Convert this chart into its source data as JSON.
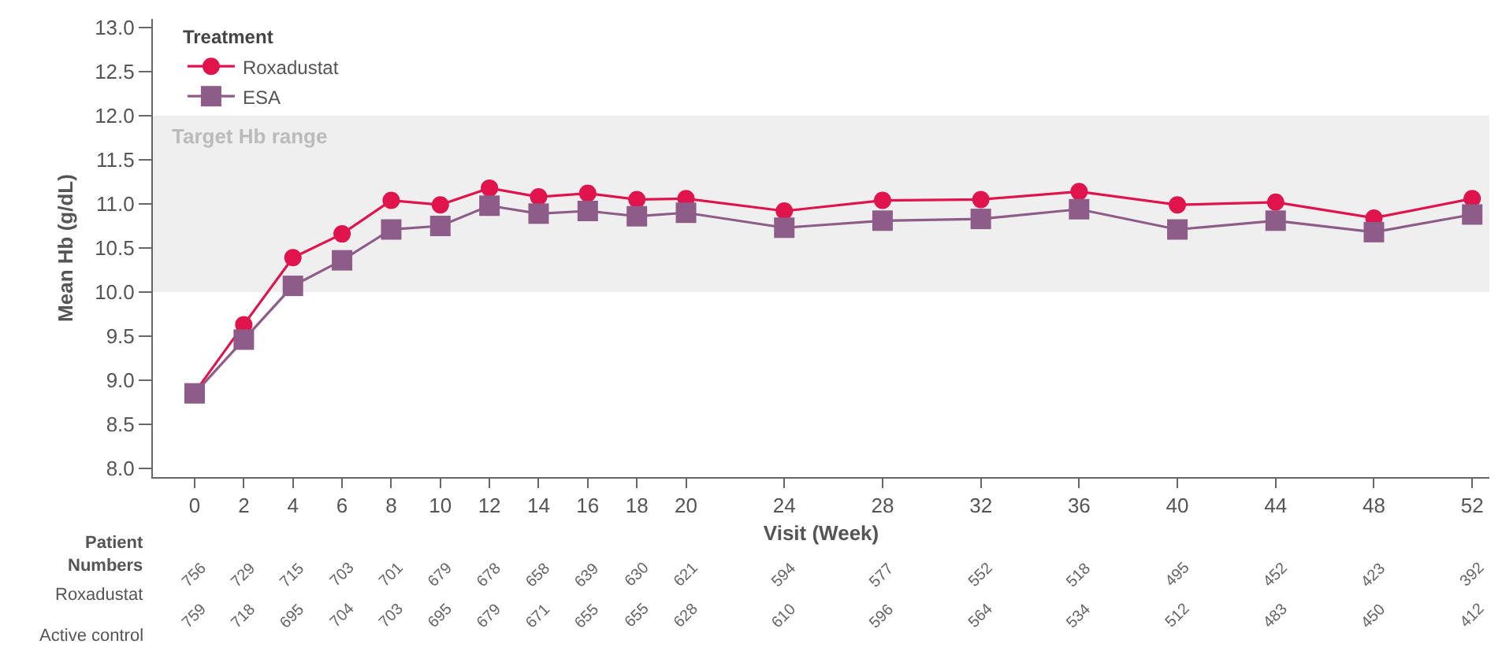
{
  "chart_data": {
    "type": "line",
    "x": [
      0,
      2,
      4,
      6,
      8,
      10,
      12,
      14,
      16,
      18,
      20,
      24,
      28,
      32,
      36,
      40,
      44,
      48,
      52
    ],
    "series": [
      {
        "name": "Roxadustat",
        "color": "#e0144c",
        "marker": "circle",
        "values": [
          8.86,
          9.63,
          10.39,
          10.66,
          11.04,
          10.99,
          11.18,
          11.08,
          11.12,
          11.05,
          11.06,
          10.92,
          11.04,
          11.05,
          11.14,
          10.99,
          11.02,
          10.84,
          11.06
        ]
      },
      {
        "name": "ESA",
        "color": "#8e5c88",
        "marker": "square",
        "values": [
          8.85,
          9.46,
          10.07,
          10.36,
          10.71,
          10.75,
          10.98,
          10.89,
          10.92,
          10.86,
          10.9,
          10.73,
          10.81,
          10.83,
          10.94,
          10.71,
          10.81,
          10.68,
          10.88
        ]
      }
    ],
    "xlabel": "Visit (Week)",
    "ylabel": "Mean Hb (g/dL)",
    "legend_title": "Treatment",
    "legend": "top left",
    "grid": false,
    "xlim": [
      -1.7,
      52.7
    ],
    "xticks": [
      0,
      2,
      4,
      6,
      8,
      10,
      12,
      14,
      16,
      18,
      20,
      24,
      28,
      32,
      36,
      40,
      44,
      48,
      52
    ],
    "ylim": [
      7.9,
      13.1
    ],
    "yticks": [
      {
        "value": 8,
        "label": "8.0"
      },
      {
        "value": 8.5,
        "label": "8.5"
      },
      {
        "value": 9,
        "label": "9.0"
      },
      {
        "value": 9.5,
        "label": "9.5"
      },
      {
        "value": 10,
        "label": "10.0"
      },
      {
        "value": 10.5,
        "label": "10.5"
      },
      {
        "value": 11,
        "label": "11.0"
      },
      {
        "value": 11.5,
        "label": "11.5"
      },
      {
        "value": 12,
        "label": "12.0"
      },
      {
        "value": 12.5,
        "label": "12.5"
      },
      {
        "value": 13,
        "label": "13.0"
      }
    ],
    "bands": [
      {
        "axis": "y",
        "from": 10,
        "to": 12,
        "label": "Target Hb range",
        "color": "#efefef"
      }
    ],
    "annotations": [
      "Patient Numbers",
      "Roxadustat",
      "Active control",
      "756",
      "729",
      "715",
      "703",
      "701",
      "679",
      "678",
      "658",
      "639",
      "630",
      "621",
      "594",
      "577",
      "552",
      "518",
      "495",
      "452",
      "423",
      "392",
      "759",
      "718",
      "695",
      "704",
      "703",
      "695",
      "679",
      "671",
      "655",
      "655",
      "628",
      "610",
      "596",
      "564",
      "534",
      "512",
      "483",
      "450",
      "412"
    ]
  }
}
